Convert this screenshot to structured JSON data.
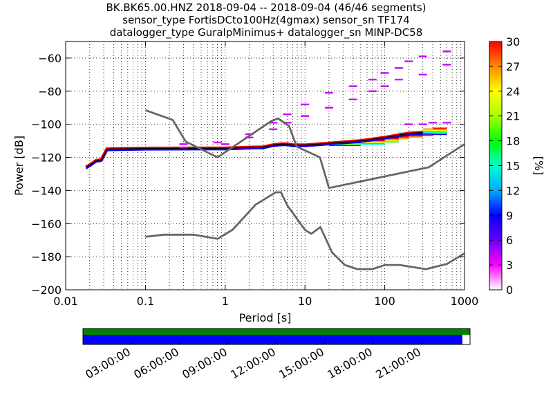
{
  "title_lines": [
    "BK.BK65.00.HNZ   2018-09-04 -- 2018-09-04  (46/46 segments)",
    "sensor_type FortisDCto100Hz(4gmax) sensor_sn TF174",
    "datalogger_type GuralpMinimus+ datalogger_sn MINP-DC58"
  ],
  "chart_data": {
    "type": "heatmap",
    "xlabel": "Period [s]",
    "ylabel": "Power [dB]",
    "x_scale": "log",
    "xlim": [
      0.01,
      1000
    ],
    "ylim": [
      -200,
      -50
    ],
    "x_ticks": [
      0.01,
      0.1,
      1,
      10,
      100,
      1000
    ],
    "x_tick_labels": [
      "0.01",
      "0.1",
      "1",
      "10",
      "100",
      "1000"
    ],
    "y_ticks": [
      -200,
      -180,
      -160,
      -140,
      -120,
      -100,
      -80,
      -60
    ],
    "y_tick_labels": [
      "−200",
      "−180",
      "−160",
      "−140",
      "−120",
      "−100",
      "−80",
      "−60"
    ],
    "grid": "dotted, log minor x",
    "colorbar": {
      "label": "[%]",
      "range": [
        0,
        30
      ],
      "ticks": [
        0,
        3,
        6,
        9,
        12,
        15,
        18,
        21,
        24,
        27,
        30
      ],
      "colors": [
        "#ffffff",
        "#ff00ff",
        "#6600ff",
        "#0000ff",
        "#00aaff",
        "#00ffcc",
        "#00ff00",
        "#aaff00",
        "#ffff00",
        "#ff8800",
        "#ff0000"
      ]
    },
    "noise_models": [
      {
        "name": "NHNM",
        "points": [
          [
            0.1,
            -91.5
          ],
          [
            0.22,
            -97.4
          ],
          [
            0.32,
            -110.5
          ],
          [
            0.8,
            -120
          ],
          [
            3.8,
            -98
          ],
          [
            4.6,
            -96.5
          ],
          [
            6.3,
            -101
          ],
          [
            7.9,
            -113.5
          ],
          [
            15.4,
            -120
          ],
          [
            20,
            -138.5
          ],
          [
            354.8,
            -126
          ],
          [
            1000,
            -112
          ]
        ]
      },
      {
        "name": "NLNM",
        "points": [
          [
            0.1,
            -168
          ],
          [
            0.17,
            -166.7
          ],
          [
            0.4,
            -166.7
          ],
          [
            0.8,
            -169.2
          ],
          [
            1.24,
            -163.7
          ],
          [
            2.4,
            -148.6
          ],
          [
            4.3,
            -141.1
          ],
          [
            5,
            -141.1
          ],
          [
            6,
            -149
          ],
          [
            10,
            -163.8
          ],
          [
            12,
            -166.2
          ],
          [
            15.6,
            -162.1
          ],
          [
            21.9,
            -177.5
          ],
          [
            31.6,
            -185
          ],
          [
            45,
            -187.5
          ],
          [
            70,
            -187.5
          ],
          [
            101,
            -185
          ],
          [
            154,
            -185
          ],
          [
            328,
            -187.5
          ],
          [
            600,
            -184.4
          ],
          [
            1000,
            -178
          ]
        ]
      }
    ],
    "psd_median": [
      [
        0.018,
        -126
      ],
      [
        0.021,
        -124
      ],
      [
        0.024,
        -122
      ],
      [
        0.028,
        -121.5
      ],
      [
        0.033,
        -115
      ],
      [
        0.1,
        -114.6
      ],
      [
        0.5,
        -114.5
      ],
      [
        1,
        -114.5
      ],
      [
        2,
        -114
      ],
      [
        3,
        -113.8
      ],
      [
        4,
        -112.5
      ],
      [
        5,
        -112
      ],
      [
        6,
        -112
      ],
      [
        7,
        -112.5
      ],
      [
        10,
        -112.6
      ],
      [
        20,
        -111.5
      ],
      [
        50,
        -110
      ],
      [
        100,
        -108
      ],
      [
        200,
        -105.5
      ],
      [
        300,
        -105
      ]
    ],
    "psd_spread": [
      [
        20,
        -113,
        -111
      ],
      [
        50,
        -112.5,
        -109
      ],
      [
        100,
        -111,
        -107
      ],
      [
        150,
        -109.5,
        -105
      ],
      [
        200,
        -108,
        -104
      ],
      [
        300,
        -107,
        -102.5
      ],
      [
        400,
        -106.5,
        -102
      ],
      [
        600,
        -106.5,
        -101.5
      ]
    ],
    "upper_branches": [
      {
        "name": "upper-1",
        "points": [
          [
            0.3,
            -112
          ],
          [
            0.8,
            -111
          ],
          [
            2,
            -106
          ],
          [
            4,
            -99
          ],
          [
            6,
            -94
          ],
          [
            10,
            -88
          ],
          [
            20,
            -81
          ],
          [
            40,
            -77
          ],
          [
            70,
            -73
          ],
          [
            100,
            -69
          ],
          [
            150,
            -66
          ],
          [
            200,
            -62
          ],
          [
            300,
            -59
          ],
          [
            600,
            -56
          ]
        ]
      },
      {
        "name": "upper-2",
        "points": [
          [
            0.3,
            -114
          ],
          [
            1,
            -112
          ],
          [
            2,
            -108
          ],
          [
            4,
            -103
          ],
          [
            6,
            -99
          ],
          [
            10,
            -95
          ],
          [
            20,
            -90
          ],
          [
            40,
            -85
          ],
          [
            70,
            -80
          ],
          [
            100,
            -77
          ],
          [
            150,
            -73
          ],
          [
            300,
            -70
          ],
          [
            600,
            -64
          ]
        ]
      },
      {
        "name": "upper-3",
        "points": [
          [
            200,
            -100
          ],
          [
            300,
            -100
          ],
          [
            400,
            -99
          ],
          [
            600,
            -99
          ]
        ]
      }
    ]
  },
  "timeline": {
    "tick_labels": [
      "03:00:00",
      "06:00:00",
      "09:00:00",
      "12:00:00",
      "15:00:00",
      "18:00:00",
      "21:00:00"
    ],
    "tick_fractions": [
      0.125,
      0.25,
      0.375,
      0.5,
      0.625,
      0.75,
      0.875
    ],
    "coverage_fraction": 0.98,
    "top_color": "#008000",
    "bar_color": "#0000ff"
  }
}
